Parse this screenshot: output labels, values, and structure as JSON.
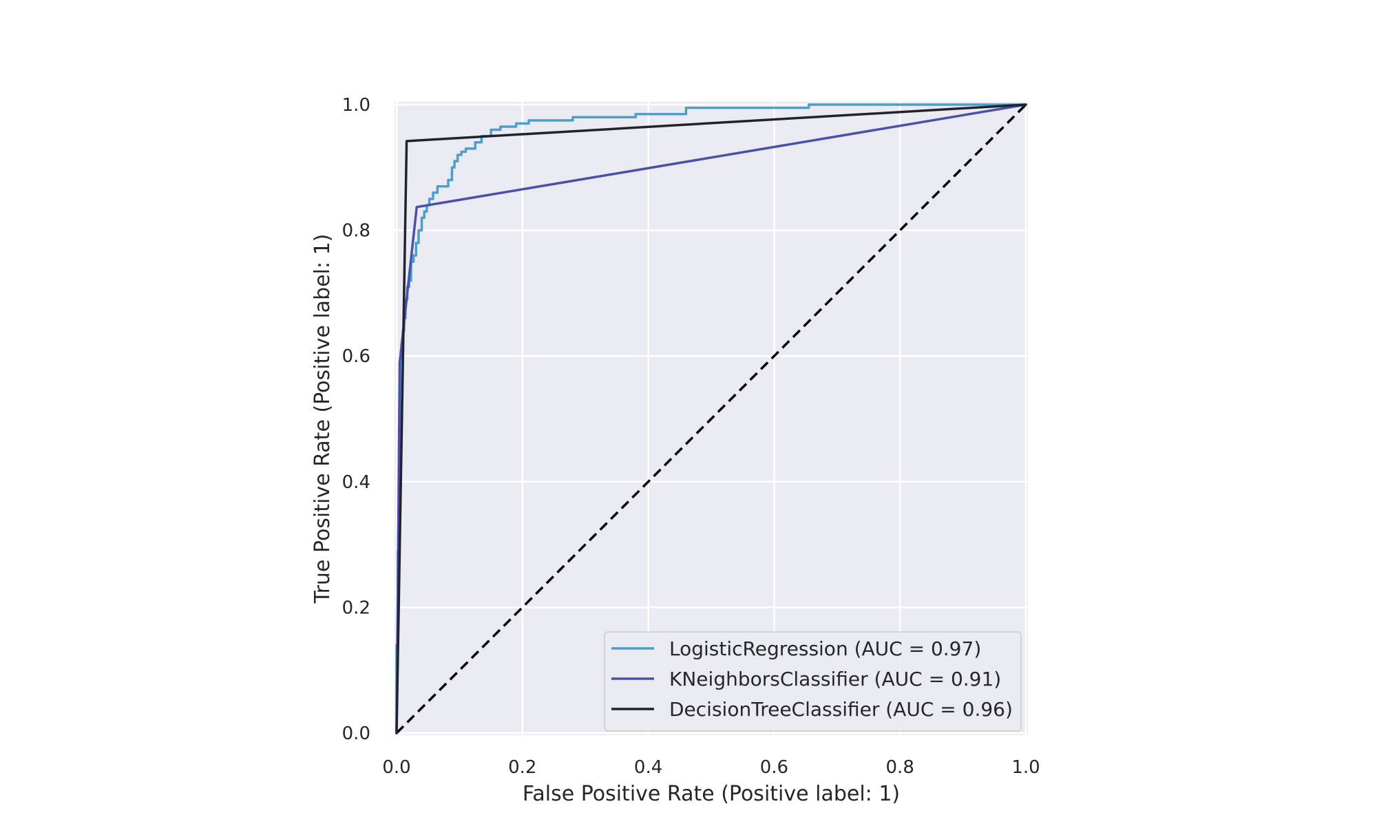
{
  "chart_data": {
    "type": "line",
    "title": "",
    "xlabel": "False Positive Rate (Positive label: 1)",
    "ylabel": "True Positive Rate (Positive label: 1)",
    "xlim": [
      0.0,
      1.0
    ],
    "ylim": [
      0.0,
      1.0
    ],
    "xticks": [
      "0.0",
      "0.2",
      "0.4",
      "0.6",
      "0.8",
      "1.0"
    ],
    "yticks": [
      "0.0",
      "0.2",
      "0.4",
      "0.6",
      "0.8",
      "1.0"
    ],
    "grid": true,
    "legend_position": "lower-right",
    "colors": {
      "plot_background": "#eaeaf2",
      "grid": "#ffffff",
      "chance_line": "#000000"
    },
    "chance_line": {
      "style": "dashed",
      "x": [
        0.0,
        1.0
      ],
      "y": [
        0.0,
        1.0
      ]
    },
    "series": [
      {
        "name": "LogisticRegression (AUC = 0.97)",
        "color": "#4c9ecb",
        "x": [
          0.0,
          0.0,
          0.002,
          0.002,
          0.004,
          0.004,
          0.006,
          0.006,
          0.008,
          0.008,
          0.01,
          0.01,
          0.012,
          0.012,
          0.014,
          0.014,
          0.017,
          0.017,
          0.02,
          0.02,
          0.023,
          0.023,
          0.027,
          0.027,
          0.031,
          0.031,
          0.035,
          0.035,
          0.04,
          0.04,
          0.044,
          0.044,
          0.048,
          0.048,
          0.052,
          0.052,
          0.058,
          0.058,
          0.065,
          0.065,
          0.082,
          0.082,
          0.088,
          0.088,
          0.092,
          0.092,
          0.097,
          0.097,
          0.103,
          0.103,
          0.11,
          0.11,
          0.125,
          0.125,
          0.135,
          0.135,
          0.15,
          0.15,
          0.165,
          0.165,
          0.19,
          0.19,
          0.21,
          0.21,
          0.28,
          0.28,
          0.38,
          0.38,
          0.46,
          0.46,
          0.655,
          0.655,
          1.0
        ],
        "y": [
          0.0,
          0.14,
          0.14,
          0.29,
          0.29,
          0.48,
          0.48,
          0.59,
          0.59,
          0.62,
          0.62,
          0.64,
          0.64,
          0.66,
          0.66,
          0.69,
          0.69,
          0.71,
          0.71,
          0.72,
          0.72,
          0.75,
          0.75,
          0.76,
          0.76,
          0.78,
          0.78,
          0.8,
          0.8,
          0.82,
          0.82,
          0.83,
          0.83,
          0.84,
          0.84,
          0.85,
          0.85,
          0.86,
          0.86,
          0.87,
          0.87,
          0.88,
          0.88,
          0.9,
          0.9,
          0.91,
          0.91,
          0.92,
          0.92,
          0.925,
          0.925,
          0.93,
          0.93,
          0.94,
          0.94,
          0.95,
          0.95,
          0.96,
          0.96,
          0.965,
          0.965,
          0.97,
          0.97,
          0.975,
          0.975,
          0.98,
          0.98,
          0.985,
          0.985,
          0.995,
          0.995,
          1.0,
          1.0
        ]
      },
      {
        "name": "KNeighborsClassifier (AUC = 0.91)",
        "color": "#4a50a8",
        "x": [
          0.0,
          0.005,
          0.032,
          1.0
        ],
        "y": [
          0.0,
          0.59,
          0.837,
          1.0
        ]
      },
      {
        "name": "DecisionTreeClassifier (AUC = 0.96)",
        "color": "#22222f",
        "x": [
          0.0,
          0.016,
          1.0
        ],
        "y": [
          0.0,
          0.942,
          1.0
        ]
      }
    ]
  }
}
